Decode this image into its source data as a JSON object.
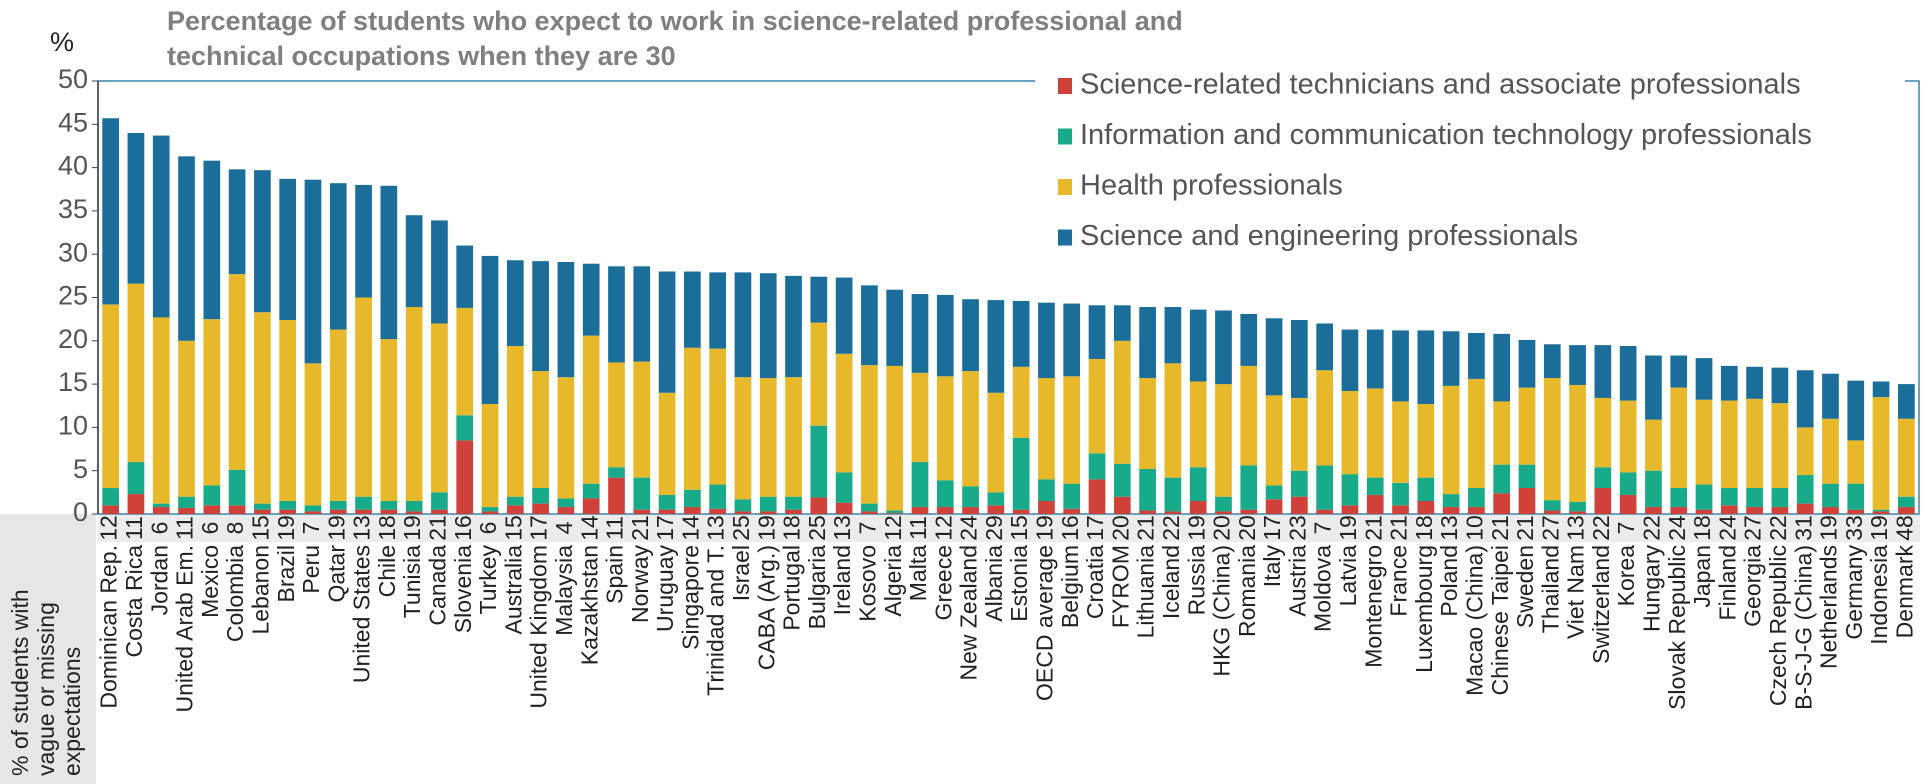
{
  "chart_data": {
    "type": "bar",
    "stacked": true,
    "title": [
      "Percentage of students who expect to work in science-related professional and",
      "technical occupations when they are 30"
    ],
    "y_label": "%",
    "row_label": [
      "% of students with",
      "vague or missing",
      "expectations"
    ],
    "categories": [
      "Dominican Rep.",
      "Costa Rica",
      "Jordan",
      "United Arab Em.",
      "Mexico",
      "Colombia",
      "Lebanon",
      "Brazil",
      "Peru",
      "Qatar",
      "United States",
      "Chile",
      "Tunisia",
      "Canada",
      "Slovenia",
      "Turkey",
      "Australia",
      "United Kingdom",
      "Malaysia",
      "Kazakhstan",
      "Spain",
      "Norway",
      "Uruguay",
      "Singapore",
      "Trinidad and T.",
      "Israel",
      "CABA (Arg.)",
      "Portugal",
      "Bulgaria",
      "Ireland",
      "Kosovo",
      "Algeria",
      "Malta",
      "Greece",
      "New Zealand",
      "Albania",
      "Estonia",
      "OECD average",
      "Belgium",
      "Croatia",
      "FYROM",
      "Lithuania",
      "Iceland",
      "Russia",
      "HKG (China)",
      "Romania",
      "Italy",
      "Austria",
      "Moldova",
      "Latvia",
      "Montenegro",
      "France",
      "Luxembourg",
      "Poland",
      "Macao (China)",
      "Chinese Taipei",
      "Sweden",
      "Thailand",
      "Viet Nam",
      "Switzerland",
      "Korea",
      "Hungary",
      "Slovak Republic",
      "Japan",
      "Finland",
      "Georgia",
      "Czech Republic",
      "B-S-J-G (China)",
      "Netherlands",
      "Germany",
      "Indonesia",
      "Denmark"
    ],
    "row_values": [
      12,
      11,
      6,
      11,
      6,
      8,
      15,
      19,
      7,
      19,
      13,
      18,
      19,
      21,
      16,
      6,
      15,
      17,
      4,
      14,
      11,
      21,
      17,
      14,
      13,
      25,
      19,
      18,
      25,
      13,
      7,
      12,
      11,
      12,
      24,
      29,
      15,
      19,
      16,
      17,
      20,
      21,
      22,
      19,
      20,
      20,
      17,
      23,
      7,
      19,
      21,
      21,
      18,
      13,
      10,
      21,
      21,
      27,
      13,
      22,
      7,
      22,
      24,
      18,
      24,
      27,
      22,
      31,
      19,
      33,
      19,
      48
    ],
    "series": [
      {
        "name": "Science-related technicians and associate professionals",
        "color": "#d0413a",
        "values": [
          1,
          2.3,
          0.8,
          0.7,
          1,
          1,
          0.5,
          0.5,
          0.3,
          0.5,
          0.5,
          0.5,
          0.3,
          0.5,
          8.5,
          0.3,
          1,
          1.2,
          0.8,
          1.8,
          4.2,
          0.5,
          0.5,
          0.8,
          0.6,
          0.3,
          0.3,
          0.5,
          1.9,
          1.3,
          0.3,
          0.1,
          0.8,
          0.8,
          0.8,
          1,
          0.5,
          1.5,
          0.6,
          4,
          2,
          0.4,
          0.3,
          1.5,
          0.3,
          0.5,
          1.7,
          2,
          0.5,
          1,
          2.2,
          1,
          1.5,
          0.8,
          0.8,
          2.4,
          3,
          0.4,
          0.3,
          3,
          2.2,
          0.8,
          0.8,
          0.5,
          1,
          0.8,
          0.8,
          1.2,
          0.8,
          0.5,
          0.3,
          0.8
        ]
      },
      {
        "name": "Information and communication technology professionals",
        "color": "#17ab8a",
        "values": [
          2,
          3.7,
          0.4,
          1.3,
          2.3,
          4.1,
          0.7,
          1,
          0.7,
          1,
          1.5,
          1,
          1.2,
          2,
          2.9,
          0.5,
          1,
          1.8,
          1,
          1.7,
          1.2,
          3.7,
          1.7,
          2,
          2.8,
          1.4,
          1.7,
          1.5,
          8.3,
          3.5,
          0.9,
          0.3,
          5.2,
          3.1,
          2.4,
          1.5,
          8.3,
          2.5,
          2.9,
          3,
          3.8,
          4.8,
          3.9,
          3.9,
          1.7,
          5.1,
          1.6,
          3,
          5.1,
          3.6,
          2,
          2.6,
          2.7,
          1.5,
          2.2,
          3.3,
          2.7,
          1.2,
          1.1,
          2.4,
          2.6,
          4.2,
          2.2,
          2.9,
          2,
          2.2,
          2.2,
          3.3,
          2.7,
          3,
          0.2,
          1.2
        ]
      },
      {
        "name": "Health professionals",
        "color": "#e6b82a",
        "values": [
          21.2,
          20.6,
          21.5,
          18,
          19.2,
          22.6,
          22.1,
          20.9,
          16.4,
          19.8,
          23,
          18.7,
          22.4,
          19.5,
          12.4,
          11.9,
          17.4,
          13.5,
          14,
          17.1,
          12.1,
          13.4,
          11.8,
          16.4,
          15.7,
          14.1,
          13.7,
          13.8,
          11.9,
          13.7,
          16,
          16.7,
          10.3,
          12,
          13.3,
          11.5,
          8.2,
          11.7,
          12.4,
          10.9,
          14.2,
          10.5,
          13.2,
          9.9,
          13,
          11.5,
          10.4,
          8.4,
          11,
          9.6,
          10.3,
          9.4,
          8.5,
          12.5,
          12.6,
          7.3,
          8.9,
          14.1,
          13.5,
          8,
          8.3,
          5.9,
          11.6,
          9.8,
          10.1,
          10.3,
          9.8,
          5.5,
          7.5,
          5,
          13,
          9
        ]
      },
      {
        "name": "Science and engineering professionals",
        "color": "#1a6e99",
        "values": [
          21.5,
          17.4,
          21,
          21.3,
          18.3,
          12.1,
          16.4,
          16.3,
          21.2,
          16.9,
          13,
          17.7,
          10.6,
          11.9,
          7.2,
          17.1,
          9.9,
          12.7,
          13.3,
          8.3,
          11.1,
          11,
          14,
          8.8,
          8.8,
          12.1,
          12.1,
          11.7,
          5.3,
          8.8,
          9.2,
          8.8,
          9.1,
          9.4,
          8.3,
          10.7,
          7.6,
          8.7,
          8.4,
          6.2,
          4.1,
          8.2,
          6.5,
          8.3,
          8.5,
          6,
          8.9,
          9,
          5.4,
          7.1,
          6.8,
          8.2,
          8.5,
          6.3,
          5.3,
          7.8,
          5.5,
          3.9,
          4.6,
          6.1,
          6.3,
          7.4,
          3.7,
          4.8,
          4,
          3.7,
          4.1,
          6.6,
          5.2,
          6.9,
          1.8,
          4
        ]
      }
    ],
    "ylim": [
      0,
      50
    ],
    "yticks": [
      0,
      5,
      10,
      15,
      20,
      25,
      30,
      35,
      40,
      45,
      50
    ],
    "legend": "top-right"
  }
}
